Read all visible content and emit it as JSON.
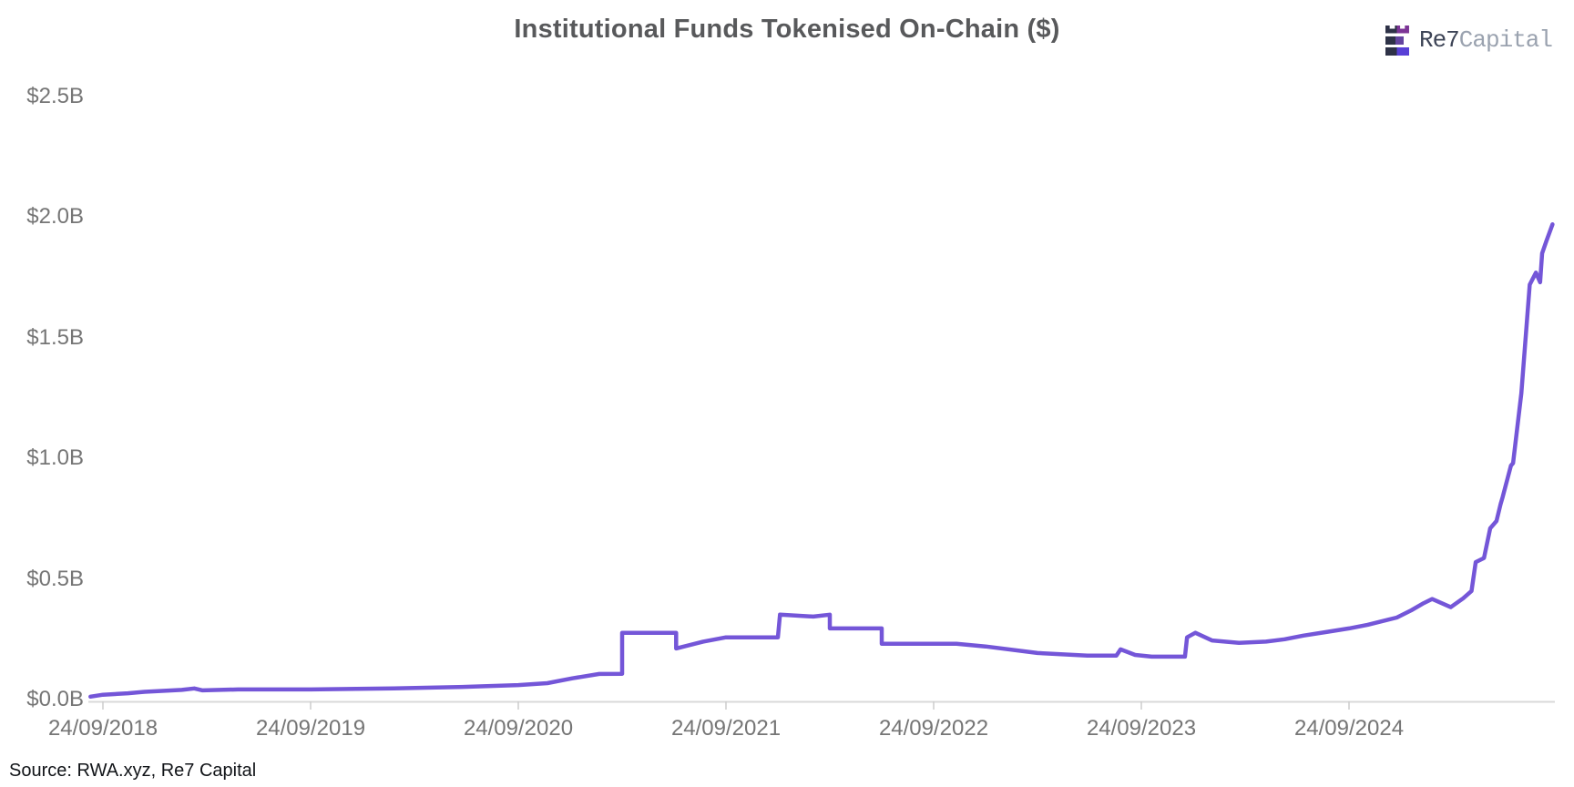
{
  "header": {
    "title": "Institutional Funds Tokenised On-Chain ($)",
    "logo": {
      "name": "Re7",
      "suffix": "Capital",
      "dark_color": "#2e3247",
      "purple_top": "#7c3596",
      "purple_mid": "#64449f",
      "purple_bottom": "#5840d6"
    }
  },
  "source_note": "Source: RWA.xyz, Re7 Capital",
  "chart_data": {
    "type": "line",
    "title": "Institutional Funds Tokenised On-Chain ($)",
    "grid": false,
    "legend": false,
    "ylabel": "",
    "xlabel": "",
    "ylim": [
      0,
      2.5
    ],
    "y_unit": "USD billions",
    "x_unit": "years since 24/09/2018",
    "x_range": [
      "24/09/2018",
      "mid-September 2025"
    ],
    "axis_line_color": "#d9d9d9",
    "x_axis": {
      "ticks": [
        {
          "t": 0,
          "label": "24/09/2018"
        },
        {
          "t": 1,
          "label": "24/09/2019"
        },
        {
          "t": 2,
          "label": "24/09/2020"
        },
        {
          "t": 3,
          "label": "24/09/2021"
        },
        {
          "t": 4,
          "label": "24/09/2022"
        },
        {
          "t": 5,
          "label": "24/09/2023"
        },
        {
          "t": 6,
          "label": "24/09/2024"
        }
      ]
    },
    "y_axis": {
      "ticks": [
        {
          "v": 0.0,
          "label": "$0.0B"
        },
        {
          "v": 0.5,
          "label": "$0.5B"
        },
        {
          "v": 1.0,
          "label": "$1.0B"
        },
        {
          "v": 1.5,
          "label": "$1.5B"
        },
        {
          "v": 2.0,
          "label": "$2.0B"
        },
        {
          "v": 2.5,
          "label": "$2.5B"
        }
      ]
    },
    "series": [
      {
        "name": "Institutional funds tokenised on-chain ($B)",
        "color": "#7456d8",
        "points": [
          [
            -0.06,
            0.012
          ],
          [
            0.0,
            0.02
          ],
          [
            0.12,
            0.026
          ],
          [
            0.2,
            0.032
          ],
          [
            0.38,
            0.04
          ],
          [
            0.44,
            0.046
          ],
          [
            0.48,
            0.038
          ],
          [
            0.65,
            0.042
          ],
          [
            1.0,
            0.042
          ],
          [
            1.4,
            0.046
          ],
          [
            1.75,
            0.053
          ],
          [
            2.0,
            0.06
          ],
          [
            2.14,
            0.068
          ],
          [
            2.26,
            0.088
          ],
          [
            2.39,
            0.106
          ],
          [
            2.5,
            0.107
          ],
          [
            2.5,
            0.277
          ],
          [
            2.76,
            0.277
          ],
          [
            2.76,
            0.212
          ],
          [
            2.89,
            0.24
          ],
          [
            3.0,
            0.258
          ],
          [
            3.25,
            0.258
          ],
          [
            3.26,
            0.352
          ],
          [
            3.42,
            0.344
          ],
          [
            3.5,
            0.352
          ],
          [
            3.5,
            0.295
          ],
          [
            3.75,
            0.295
          ],
          [
            3.75,
            0.231
          ],
          [
            4.11,
            0.231
          ],
          [
            4.25,
            0.22
          ],
          [
            4.5,
            0.193
          ],
          [
            4.74,
            0.182
          ],
          [
            4.88,
            0.182
          ],
          [
            4.9,
            0.208
          ],
          [
            4.97,
            0.185
          ],
          [
            5.05,
            0.178
          ],
          [
            5.21,
            0.178
          ],
          [
            5.22,
            0.258
          ],
          [
            5.26,
            0.277
          ],
          [
            5.34,
            0.245
          ],
          [
            5.47,
            0.235
          ],
          [
            5.6,
            0.24
          ],
          [
            5.69,
            0.25
          ],
          [
            5.78,
            0.265
          ],
          [
            5.89,
            0.28
          ],
          [
            6.0,
            0.295
          ],
          [
            6.09,
            0.31
          ],
          [
            6.23,
            0.34
          ],
          [
            6.3,
            0.37
          ],
          [
            6.36,
            0.4
          ],
          [
            6.4,
            0.417
          ],
          [
            6.49,
            0.383
          ],
          [
            6.55,
            0.42
          ],
          [
            6.59,
            0.45
          ],
          [
            6.61,
            0.57
          ],
          [
            6.65,
            0.587
          ],
          [
            6.68,
            0.71
          ],
          [
            6.71,
            0.74
          ],
          [
            6.73,
            0.81
          ],
          [
            6.74,
            0.84
          ],
          [
            6.78,
            0.97
          ],
          [
            6.79,
            0.98
          ],
          [
            6.83,
            1.27
          ],
          [
            6.87,
            1.72
          ],
          [
            6.9,
            1.77
          ],
          [
            6.92,
            1.73
          ],
          [
            6.93,
            1.85
          ],
          [
            6.95,
            1.9
          ],
          [
            6.98,
            1.97
          ]
        ]
      }
    ]
  }
}
